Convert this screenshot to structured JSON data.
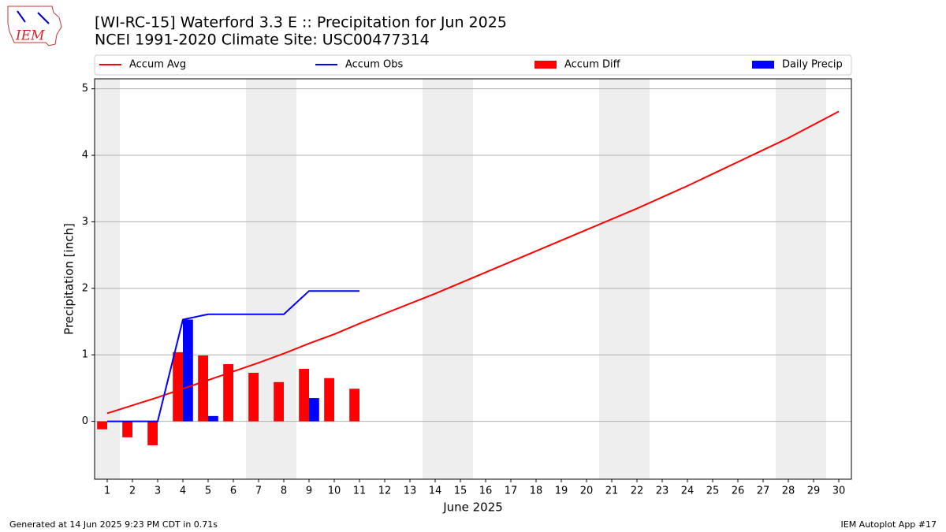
{
  "logo_text": "IEM",
  "footer_left": "Generated at 14 Jun 2025 9:23 PM CDT in 0.71s",
  "footer_right": "IEM Autoplot App #17",
  "chart_data": {
    "type": "bar-line",
    "title": "[WI-RC-15] Waterford 3.3 E :: Precipitation for Jun 2025",
    "subtitle": "NCEI 1991-2020 Climate Site: USC00477314",
    "x_label": "June 2025",
    "y_label": "Precipitation [inch]",
    "x": [
      1,
      2,
      3,
      4,
      5,
      6,
      7,
      8,
      9,
      10,
      11,
      12,
      13,
      14,
      15,
      16,
      17,
      18,
      19,
      20,
      21,
      22,
      23,
      24,
      25,
      26,
      27,
      28,
      29,
      30
    ],
    "xlim": [
      0.5,
      30.5
    ],
    "xticks": [
      1,
      2,
      3,
      4,
      5,
      6,
      7,
      8,
      9,
      10,
      11,
      12,
      13,
      14,
      15,
      16,
      17,
      18,
      19,
      20,
      21,
      22,
      23,
      24,
      25,
      26,
      27,
      28,
      29,
      30
    ],
    "ylim": [
      -0.87,
      5.15
    ],
    "yticks": [
      0,
      1,
      2,
      3,
      4,
      5
    ],
    "grid": true,
    "legend": "top",
    "weekend_spans": [
      [
        0.5,
        1.5
      ],
      [
        6.5,
        8.5
      ],
      [
        13.5,
        15.5
      ],
      [
        20.5,
        22.5
      ],
      [
        27.5,
        29.5
      ]
    ],
    "series": [
      {
        "name": "Accum Avg",
        "kind": "line",
        "color": "#ff0000",
        "values": [
          0.12,
          0.24,
          0.36,
          0.49,
          0.62,
          0.75,
          0.88,
          1.02,
          1.17,
          1.31,
          1.47,
          1.62,
          1.77,
          1.92,
          2.08,
          2.24,
          2.4,
          2.56,
          2.72,
          2.88,
          3.04,
          3.2,
          3.37,
          3.54,
          3.72,
          3.9,
          4.08,
          4.26,
          4.46,
          4.66
        ]
      },
      {
        "name": "Accum Obs",
        "kind": "line",
        "color": "#0000ff",
        "values": [
          0,
          0,
          0,
          1.53,
          1.61,
          1.61,
          1.61,
          1.61,
          1.96,
          1.96,
          1.96,
          null,
          null,
          null,
          null,
          null,
          null,
          null,
          null,
          null,
          null,
          null,
          null,
          null,
          null,
          null,
          null,
          null,
          null,
          null
        ]
      },
      {
        "name": "Accum Diff",
        "kind": "bar",
        "offset": -0.4,
        "color": "#ff0000",
        "values": [
          -0.12,
          -0.24,
          -0.36,
          1.04,
          0.99,
          0.86,
          0.73,
          0.59,
          0.79,
          0.65,
          0.49,
          null,
          null,
          null,
          null,
          null,
          null,
          null,
          null,
          null,
          null,
          null,
          null,
          null,
          null,
          null,
          null,
          null,
          null,
          null
        ]
      },
      {
        "name": "Daily Precip",
        "kind": "bar",
        "offset": 0,
        "color": "#0000ff",
        "values": [
          0,
          0,
          0,
          1.53,
          0.08,
          0,
          0,
          0,
          0.35,
          0,
          0,
          null,
          null,
          null,
          null,
          null,
          null,
          null,
          null,
          null,
          null,
          null,
          null,
          null,
          null,
          null,
          null,
          null,
          null,
          null
        ]
      }
    ]
  }
}
